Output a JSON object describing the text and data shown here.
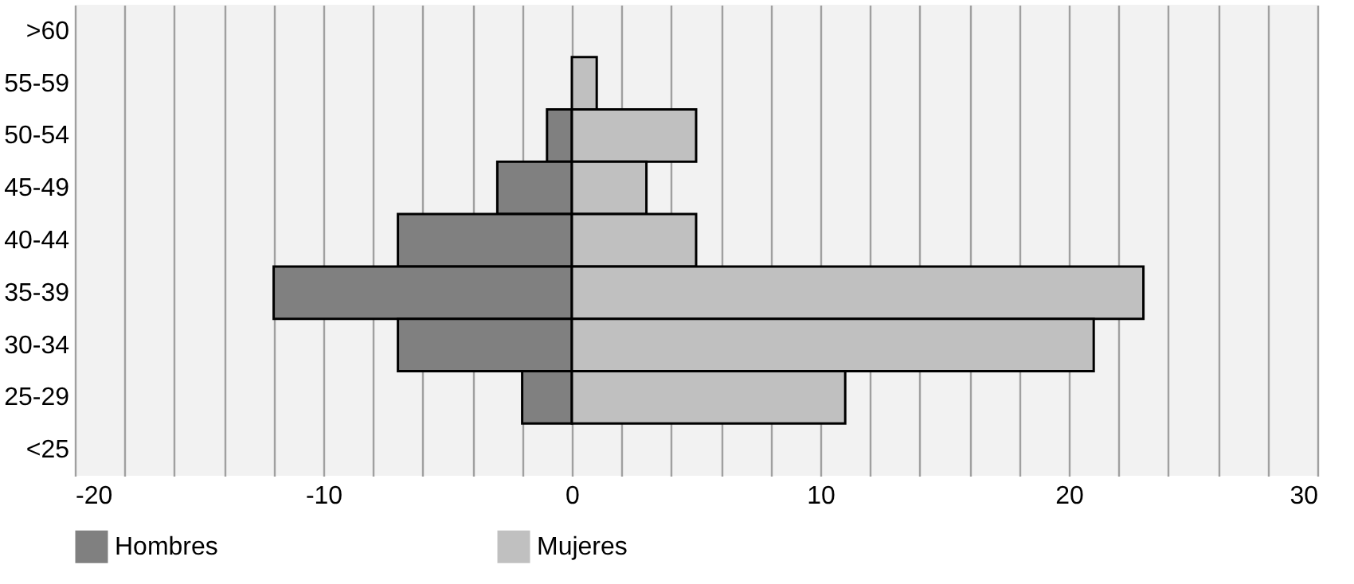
{
  "chart_data": {
    "type": "bar",
    "orientation": "horizontal",
    "stacked": true,
    "categories": [
      ">60",
      "55-59",
      "50-54",
      "45-49",
      "40-44",
      "35-39",
      "30-34",
      "25-29",
      "<25"
    ],
    "series": [
      {
        "name": "Hombres",
        "color": "#808080",
        "values": [
          0,
          0,
          -1,
          -3,
          -7,
          -12,
          -7,
          -2,
          0
        ]
      },
      {
        "name": "Mujeres",
        "color": "#c0c0c0",
        "values": [
          0,
          1,
          5,
          3,
          5,
          23,
          21,
          11,
          0
        ]
      }
    ],
    "xlim": [
      -20,
      30
    ],
    "xticks": [
      -20,
      {
        "value": -18,
        "label": null
      },
      {
        "value": -16,
        "label": null
      },
      {
        "value": -14,
        "label": null
      },
      {
        "value": -12,
        "label": null
      },
      -10,
      {
        "value": -8,
        "label": null
      },
      {
        "value": -6,
        "label": null
      },
      {
        "value": -4,
        "label": null
      },
      {
        "value": -2,
        "label": null
      },
      0,
      {
        "value": 2,
        "label": null
      },
      {
        "value": 4,
        "label": null
      },
      {
        "value": 6,
        "label": null
      },
      {
        "value": 8,
        "label": null
      },
      10,
      {
        "value": 12,
        "label": null
      },
      {
        "value": 14,
        "label": null
      },
      {
        "value": 16,
        "label": null
      },
      {
        "value": 18,
        "label": null
      },
      20,
      {
        "value": 22,
        "label": null
      },
      {
        "value": 24,
        "label": null
      },
      {
        "value": 26,
        "label": null
      },
      {
        "value": 28,
        "label": null
      },
      30
    ],
    "grid": true,
    "legend": "bottom"
  }
}
